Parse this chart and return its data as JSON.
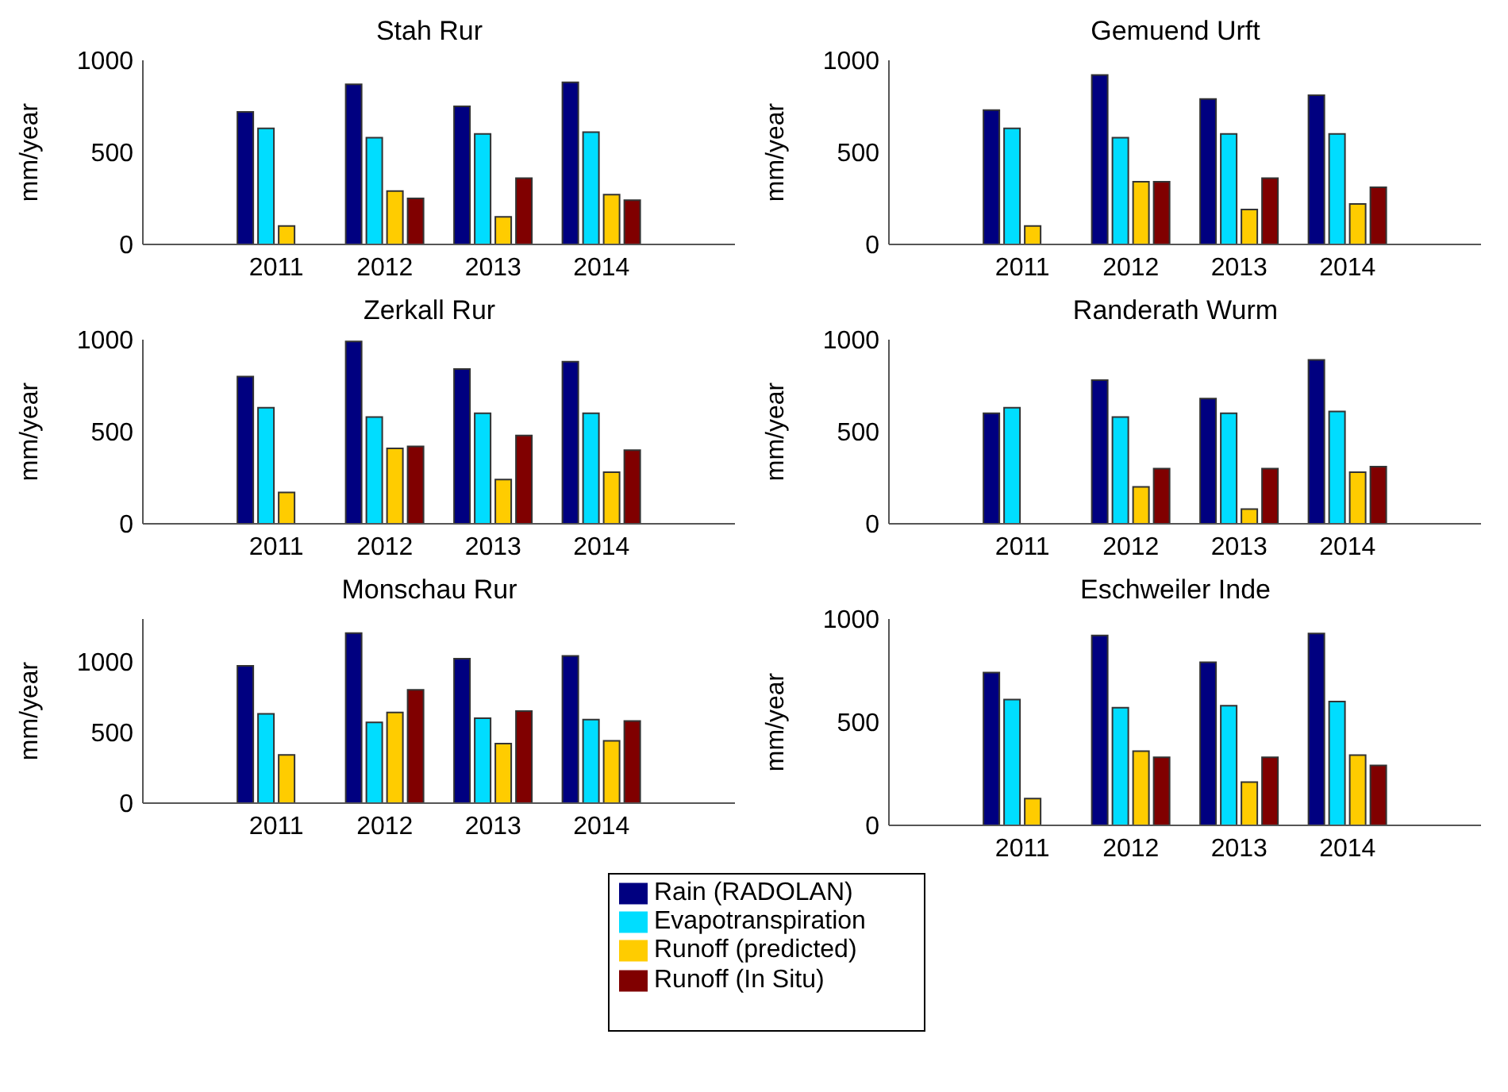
{
  "chart_data": [
    {
      "type": "bar",
      "title": "Stah Rur",
      "ylabel": "mm/year",
      "categories": [
        "2011",
        "2012",
        "2013",
        "2014"
      ],
      "ylim": [
        0,
        1000
      ],
      "yticks": [
        0,
        500,
        1000
      ],
      "series": [
        {
          "color": "#000080",
          "values": [
            720,
            870,
            750,
            880
          ]
        },
        {
          "color": "#00ddff",
          "values": [
            630,
            580,
            600,
            610
          ]
        },
        {
          "color": "#ffcc00",
          "values": [
            100,
            290,
            150,
            270
          ]
        },
        {
          "color": "#800000",
          "values": [
            null,
            250,
            360,
            240
          ]
        }
      ]
    },
    {
      "type": "bar",
      "title": "Gemuend Urft",
      "ylabel": "mm/year",
      "categories": [
        "2011",
        "2012",
        "2013",
        "2014"
      ],
      "ylim": [
        0,
        1000
      ],
      "yticks": [
        0,
        500,
        1000
      ],
      "series": [
        {
          "color": "#000080",
          "values": [
            730,
            920,
            790,
            810
          ]
        },
        {
          "color": "#00ddff",
          "values": [
            630,
            580,
            600,
            600
          ]
        },
        {
          "color": "#ffcc00",
          "values": [
            100,
            340,
            190,
            220
          ]
        },
        {
          "color": "#800000",
          "values": [
            null,
            340,
            360,
            310
          ]
        }
      ]
    },
    {
      "type": "bar",
      "title": "Zerkall Rur",
      "ylabel": "mm/year",
      "categories": [
        "2011",
        "2012",
        "2013",
        "2014"
      ],
      "ylim": [
        0,
        1000
      ],
      "yticks": [
        0,
        500,
        1000
      ],
      "series": [
        {
          "color": "#000080",
          "values": [
            800,
            990,
            840,
            880
          ]
        },
        {
          "color": "#00ddff",
          "values": [
            630,
            580,
            600,
            600
          ]
        },
        {
          "color": "#ffcc00",
          "values": [
            170,
            410,
            240,
            280
          ]
        },
        {
          "color": "#800000",
          "values": [
            null,
            420,
            480,
            400
          ]
        }
      ]
    },
    {
      "type": "bar",
      "title": "Randerath Wurm",
      "ylabel": "mm/year",
      "categories": [
        "2011",
        "2012",
        "2013",
        "2014"
      ],
      "ylim": [
        0,
        1000
      ],
      "yticks": [
        0,
        500,
        1000
      ],
      "series": [
        {
          "color": "#000080",
          "values": [
            600,
            780,
            680,
            890
          ]
        },
        {
          "color": "#00ddff",
          "values": [
            630,
            580,
            600,
            610
          ]
        },
        {
          "color": "#ffcc00",
          "values": [
            null,
            200,
            80,
            280
          ]
        },
        {
          "color": "#800000",
          "values": [
            null,
            300,
            300,
            310
          ]
        }
      ]
    },
    {
      "type": "bar",
      "title": "Monschau Rur",
      "ylabel": "mm/year",
      "categories": [
        "2011",
        "2012",
        "2013",
        "2014"
      ],
      "ylim": [
        0,
        1300
      ],
      "yticks": [
        0,
        500,
        1000
      ],
      "series": [
        {
          "color": "#000080",
          "values": [
            970,
            1200,
            1020,
            1040
          ]
        },
        {
          "color": "#00ddff",
          "values": [
            630,
            570,
            600,
            590
          ]
        },
        {
          "color": "#ffcc00",
          "values": [
            340,
            640,
            420,
            440
          ]
        },
        {
          "color": "#800000",
          "values": [
            null,
            800,
            650,
            580
          ]
        }
      ]
    },
    {
      "type": "bar",
      "title": "Eschweiler Inde",
      "ylabel": "mm/year",
      "categories": [
        "2011",
        "2012",
        "2013",
        "2014"
      ],
      "ylim": [
        0,
        1000
      ],
      "yticks": [
        0,
        500,
        1000
      ],
      "legend": "bottom",
      "series": [
        {
          "name": "Rain (RADOLAN)",
          "color": "#000080",
          "values": [
            740,
            920,
            790,
            930
          ]
        },
        {
          "name": "Evapotranspiration",
          "color": "#00ddff",
          "values": [
            610,
            570,
            580,
            600
          ]
        },
        {
          "name": "Runoff (predicted)",
          "color": "#ffcc00",
          "values": [
            130,
            360,
            210,
            340
          ]
        },
        {
          "name": "Runoff (In Situ)",
          "color": "#800000",
          "values": [
            null,
            330,
            330,
            290
          ]
        }
      ]
    }
  ]
}
